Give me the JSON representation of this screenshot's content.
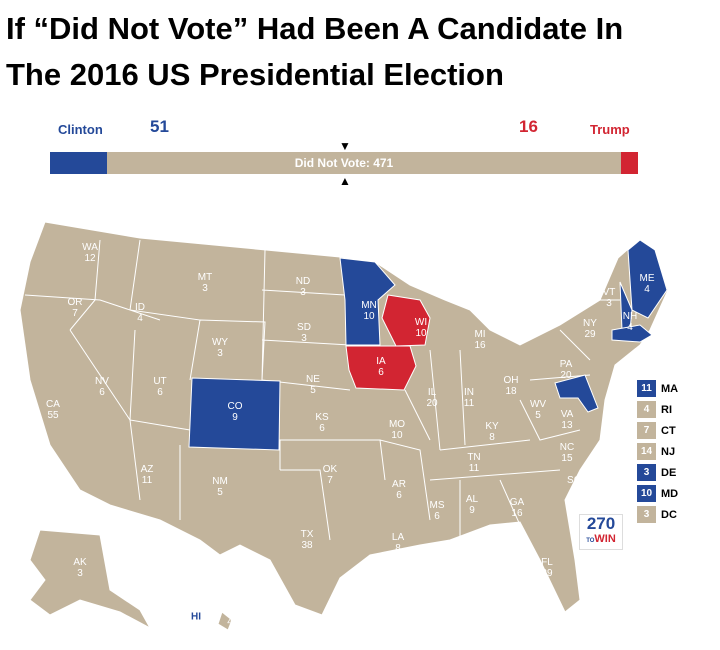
{
  "title": "If “Did Not Vote” Had Been A Candidate In The 2016 US Presidential Election",
  "title_line1": "If “Did Not Vote” Had Been A Candidate In",
  "title_line2": "The 2016 US Presidential Election",
  "colors": {
    "clinton": "#244999",
    "trump": "#d22532",
    "did_not_vote": "#c2b49c"
  },
  "tally": {
    "clinton_label": "Clinton",
    "clinton_votes": "51",
    "trump_label": "Trump",
    "trump_votes": "16",
    "did_not_vote_label": "Did Not Vote: 471",
    "did_not_vote_votes": 471
  },
  "states": [
    {
      "abbr": "WA",
      "ev": "12",
      "winner": "did_not_vote"
    },
    {
      "abbr": "OR",
      "ev": "7",
      "winner": "did_not_vote"
    },
    {
      "abbr": "CA",
      "ev": "55",
      "winner": "did_not_vote"
    },
    {
      "abbr": "ID",
      "ev": "4",
      "winner": "did_not_vote"
    },
    {
      "abbr": "NV",
      "ev": "6",
      "winner": "did_not_vote"
    },
    {
      "abbr": "MT",
      "ev": "3",
      "winner": "did_not_vote"
    },
    {
      "abbr": "WY",
      "ev": "3",
      "winner": "did_not_vote"
    },
    {
      "abbr": "UT",
      "ev": "6",
      "winner": "did_not_vote"
    },
    {
      "abbr": "AZ",
      "ev": "11",
      "winner": "did_not_vote"
    },
    {
      "abbr": "CO",
      "ev": "9",
      "winner": "clinton"
    },
    {
      "abbr": "NM",
      "ev": "5",
      "winner": "did_not_vote"
    },
    {
      "abbr": "ND",
      "ev": "3",
      "winner": "did_not_vote"
    },
    {
      "abbr": "SD",
      "ev": "3",
      "winner": "did_not_vote"
    },
    {
      "abbr": "NE",
      "ev": "5",
      "winner": "did_not_vote"
    },
    {
      "abbr": "KS",
      "ev": "6",
      "winner": "did_not_vote"
    },
    {
      "abbr": "OK",
      "ev": "7",
      "winner": "did_not_vote"
    },
    {
      "abbr": "TX",
      "ev": "38",
      "winner": "did_not_vote"
    },
    {
      "abbr": "MN",
      "ev": "10",
      "winner": "clinton"
    },
    {
      "abbr": "IA",
      "ev": "6",
      "winner": "trump"
    },
    {
      "abbr": "MO",
      "ev": "10",
      "winner": "did_not_vote"
    },
    {
      "abbr": "AR",
      "ev": "6",
      "winner": "did_not_vote"
    },
    {
      "abbr": "LA",
      "ev": "8",
      "winner": "did_not_vote"
    },
    {
      "abbr": "WI",
      "ev": "10",
      "winner": "trump"
    },
    {
      "abbr": "IL",
      "ev": "20",
      "winner": "did_not_vote"
    },
    {
      "abbr": "MI",
      "ev": "16",
      "winner": "did_not_vote"
    },
    {
      "abbr": "IN",
      "ev": "11",
      "winner": "did_not_vote"
    },
    {
      "abbr": "OH",
      "ev": "18",
      "winner": "did_not_vote"
    },
    {
      "abbr": "KY",
      "ev": "8",
      "winner": "did_not_vote"
    },
    {
      "abbr": "TN",
      "ev": "11",
      "winner": "did_not_vote"
    },
    {
      "abbr": "MS",
      "ev": "6",
      "winner": "did_not_vote"
    },
    {
      "abbr": "AL",
      "ev": "9",
      "winner": "did_not_vote"
    },
    {
      "abbr": "GA",
      "ev": "16",
      "winner": "did_not_vote"
    },
    {
      "abbr": "FL",
      "ev": "29",
      "winner": "did_not_vote"
    },
    {
      "abbr": "SC",
      "ev": "9",
      "winner": "did_not_vote"
    },
    {
      "abbr": "NC",
      "ev": "15",
      "winner": "did_not_vote"
    },
    {
      "abbr": "VA",
      "ev": "13",
      "winner": "did_not_vote"
    },
    {
      "abbr": "WV",
      "ev": "5",
      "winner": "did_not_vote"
    },
    {
      "abbr": "PA",
      "ev": "20",
      "winner": "did_not_vote"
    },
    {
      "abbr": "NY",
      "ev": "29",
      "winner": "did_not_vote"
    },
    {
      "abbr": "VT",
      "ev": "3",
      "winner": "did_not_vote"
    },
    {
      "abbr": "NH",
      "ev": "4",
      "winner": "clinton"
    },
    {
      "abbr": "ME",
      "ev": "4",
      "winner": "clinton"
    },
    {
      "abbr": "AK",
      "ev": "3",
      "winner": "did_not_vote"
    },
    {
      "abbr": "HI",
      "ev": "4",
      "winner": "did_not_vote"
    }
  ],
  "small_states": [
    {
      "abbr": "MA",
      "ev": "11",
      "winner": "clinton"
    },
    {
      "abbr": "RI",
      "ev": "4",
      "winner": "did_not_vote"
    },
    {
      "abbr": "CT",
      "ev": "7",
      "winner": "did_not_vote"
    },
    {
      "abbr": "NJ",
      "ev": "14",
      "winner": "did_not_vote"
    },
    {
      "abbr": "DE",
      "ev": "3",
      "winner": "clinton"
    },
    {
      "abbr": "MD",
      "ev": "10",
      "winner": "clinton"
    },
    {
      "abbr": "DC",
      "ev": "3",
      "winner": "did_not_vote"
    }
  ],
  "logo": {
    "top": "270",
    "bottom": "WIN",
    "middle": "TO"
  }
}
